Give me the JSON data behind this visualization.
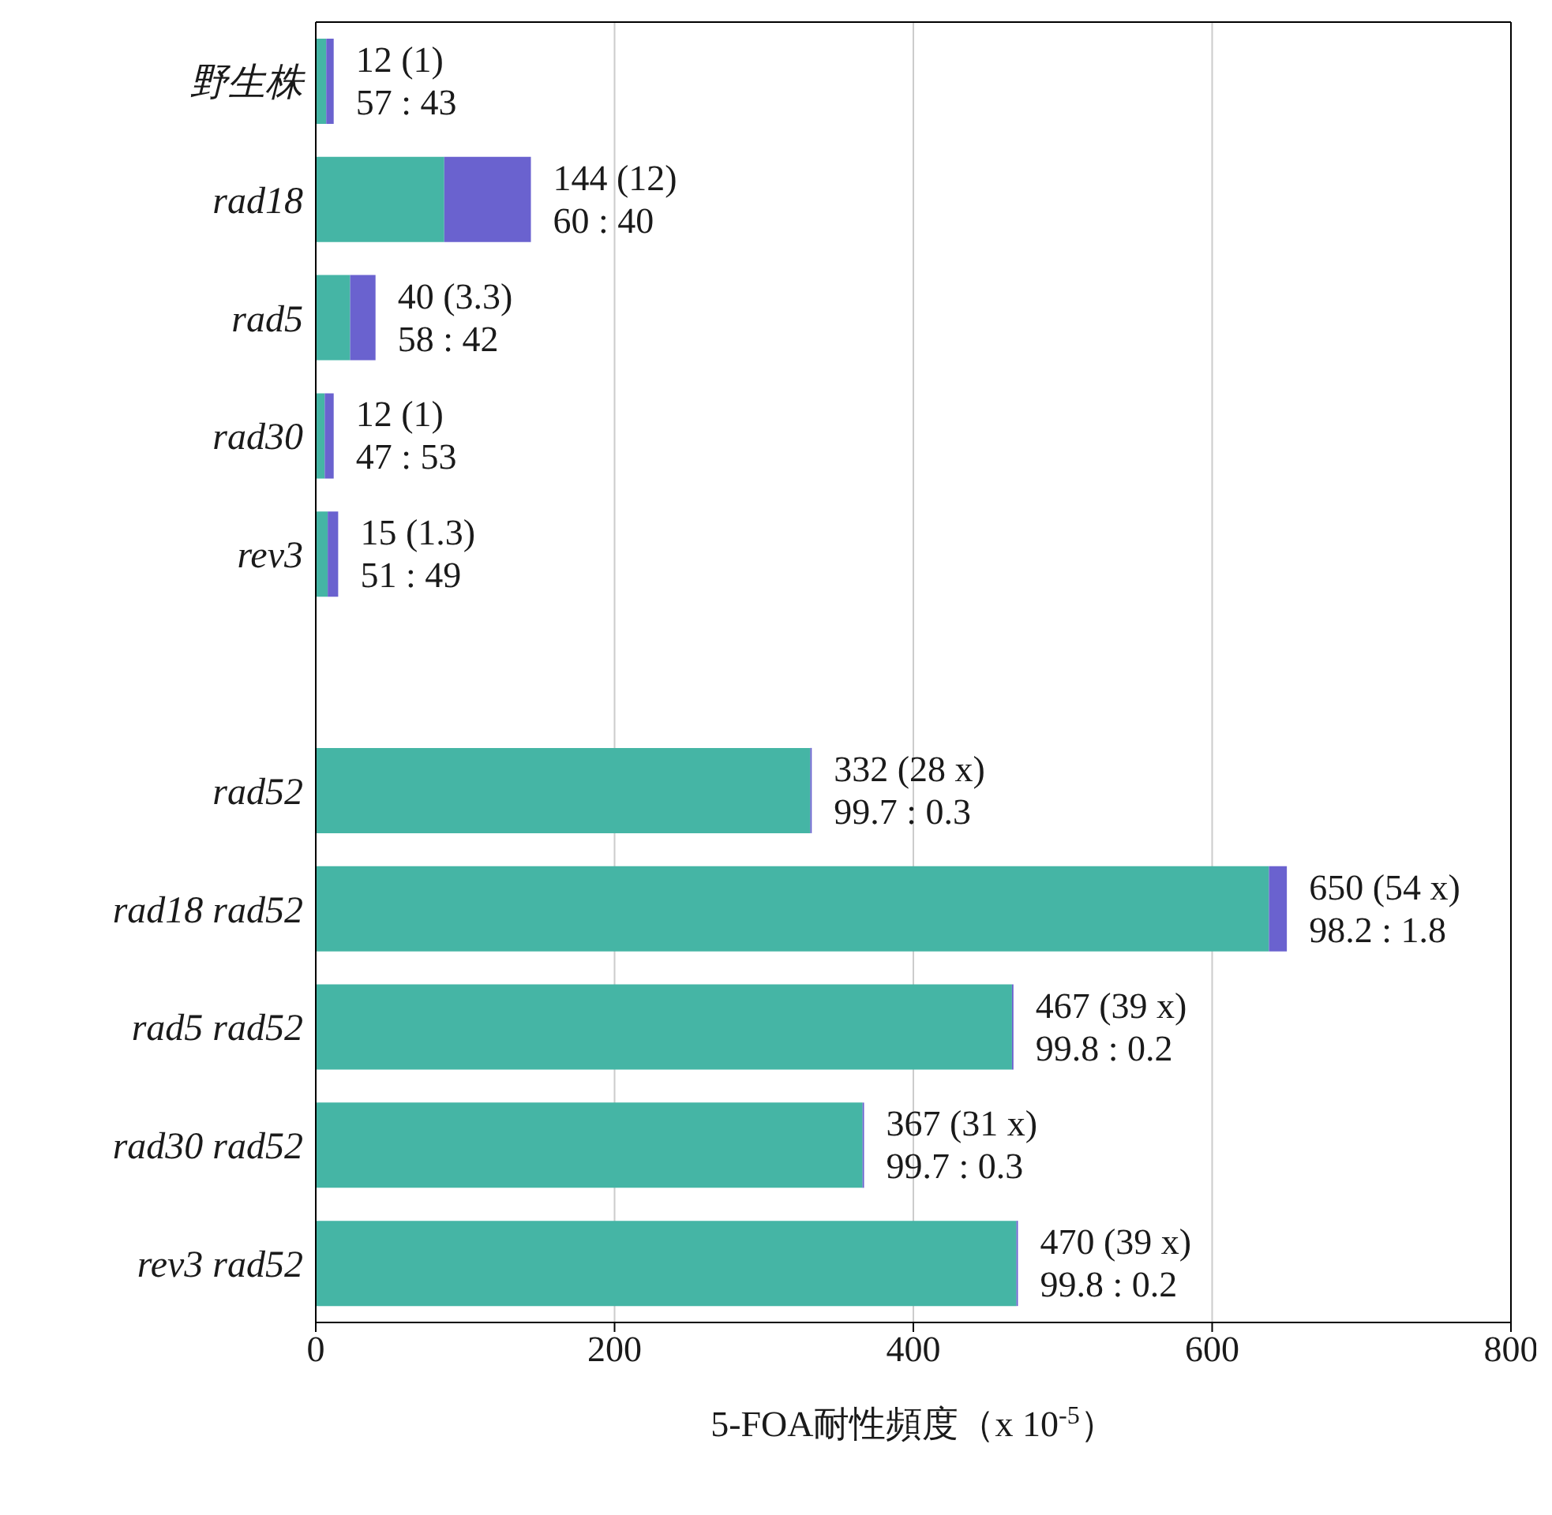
{
  "chart_data": {
    "type": "bar",
    "orientation": "horizontal",
    "stacked": true,
    "categories": [
      "野生株",
      "rad18",
      "rad5",
      "rad30",
      "rev3",
      null,
      "rad52",
      "rad18 rad52",
      "rad5 rad52",
      "rad30 rad52",
      "rev3 rad52"
    ],
    "series": [
      {
        "color": "#45b5a5",
        "values": [
          7,
          86,
          23,
          6,
          8,
          null,
          331,
          638,
          466,
          366,
          469
        ]
      },
      {
        "color": "#6a62cf",
        "values": [
          5,
          58,
          17,
          6,
          7,
          null,
          1,
          12,
          1,
          1,
          1
        ]
      }
    ],
    "totals": [
      "12 (1)\n57 : 43",
      "144 (12)\n60 : 40",
      "40 (3.3)\n58 : 42",
      "12 (1)\n47 : 53",
      "15 (1.3)\n51 : 49",
      null,
      "332 (28 x)\n99.7 : 0.3",
      "650 (54 x)\n98.2 : 1.8",
      "467 (39 x)\n99.8 : 0.2",
      "367 (31 x)\n99.7 : 0.3",
      "470 (39 x)\n99.8 : 0.2"
    ],
    "xlabel": "5-FOA耐性頻度（x 10$^{-5}$）",
    "xlim": [
      0,
      800
    ],
    "xticks": [
      0,
      200,
      400,
      600,
      800
    ],
    "grid": "x",
    "legend": false
  }
}
